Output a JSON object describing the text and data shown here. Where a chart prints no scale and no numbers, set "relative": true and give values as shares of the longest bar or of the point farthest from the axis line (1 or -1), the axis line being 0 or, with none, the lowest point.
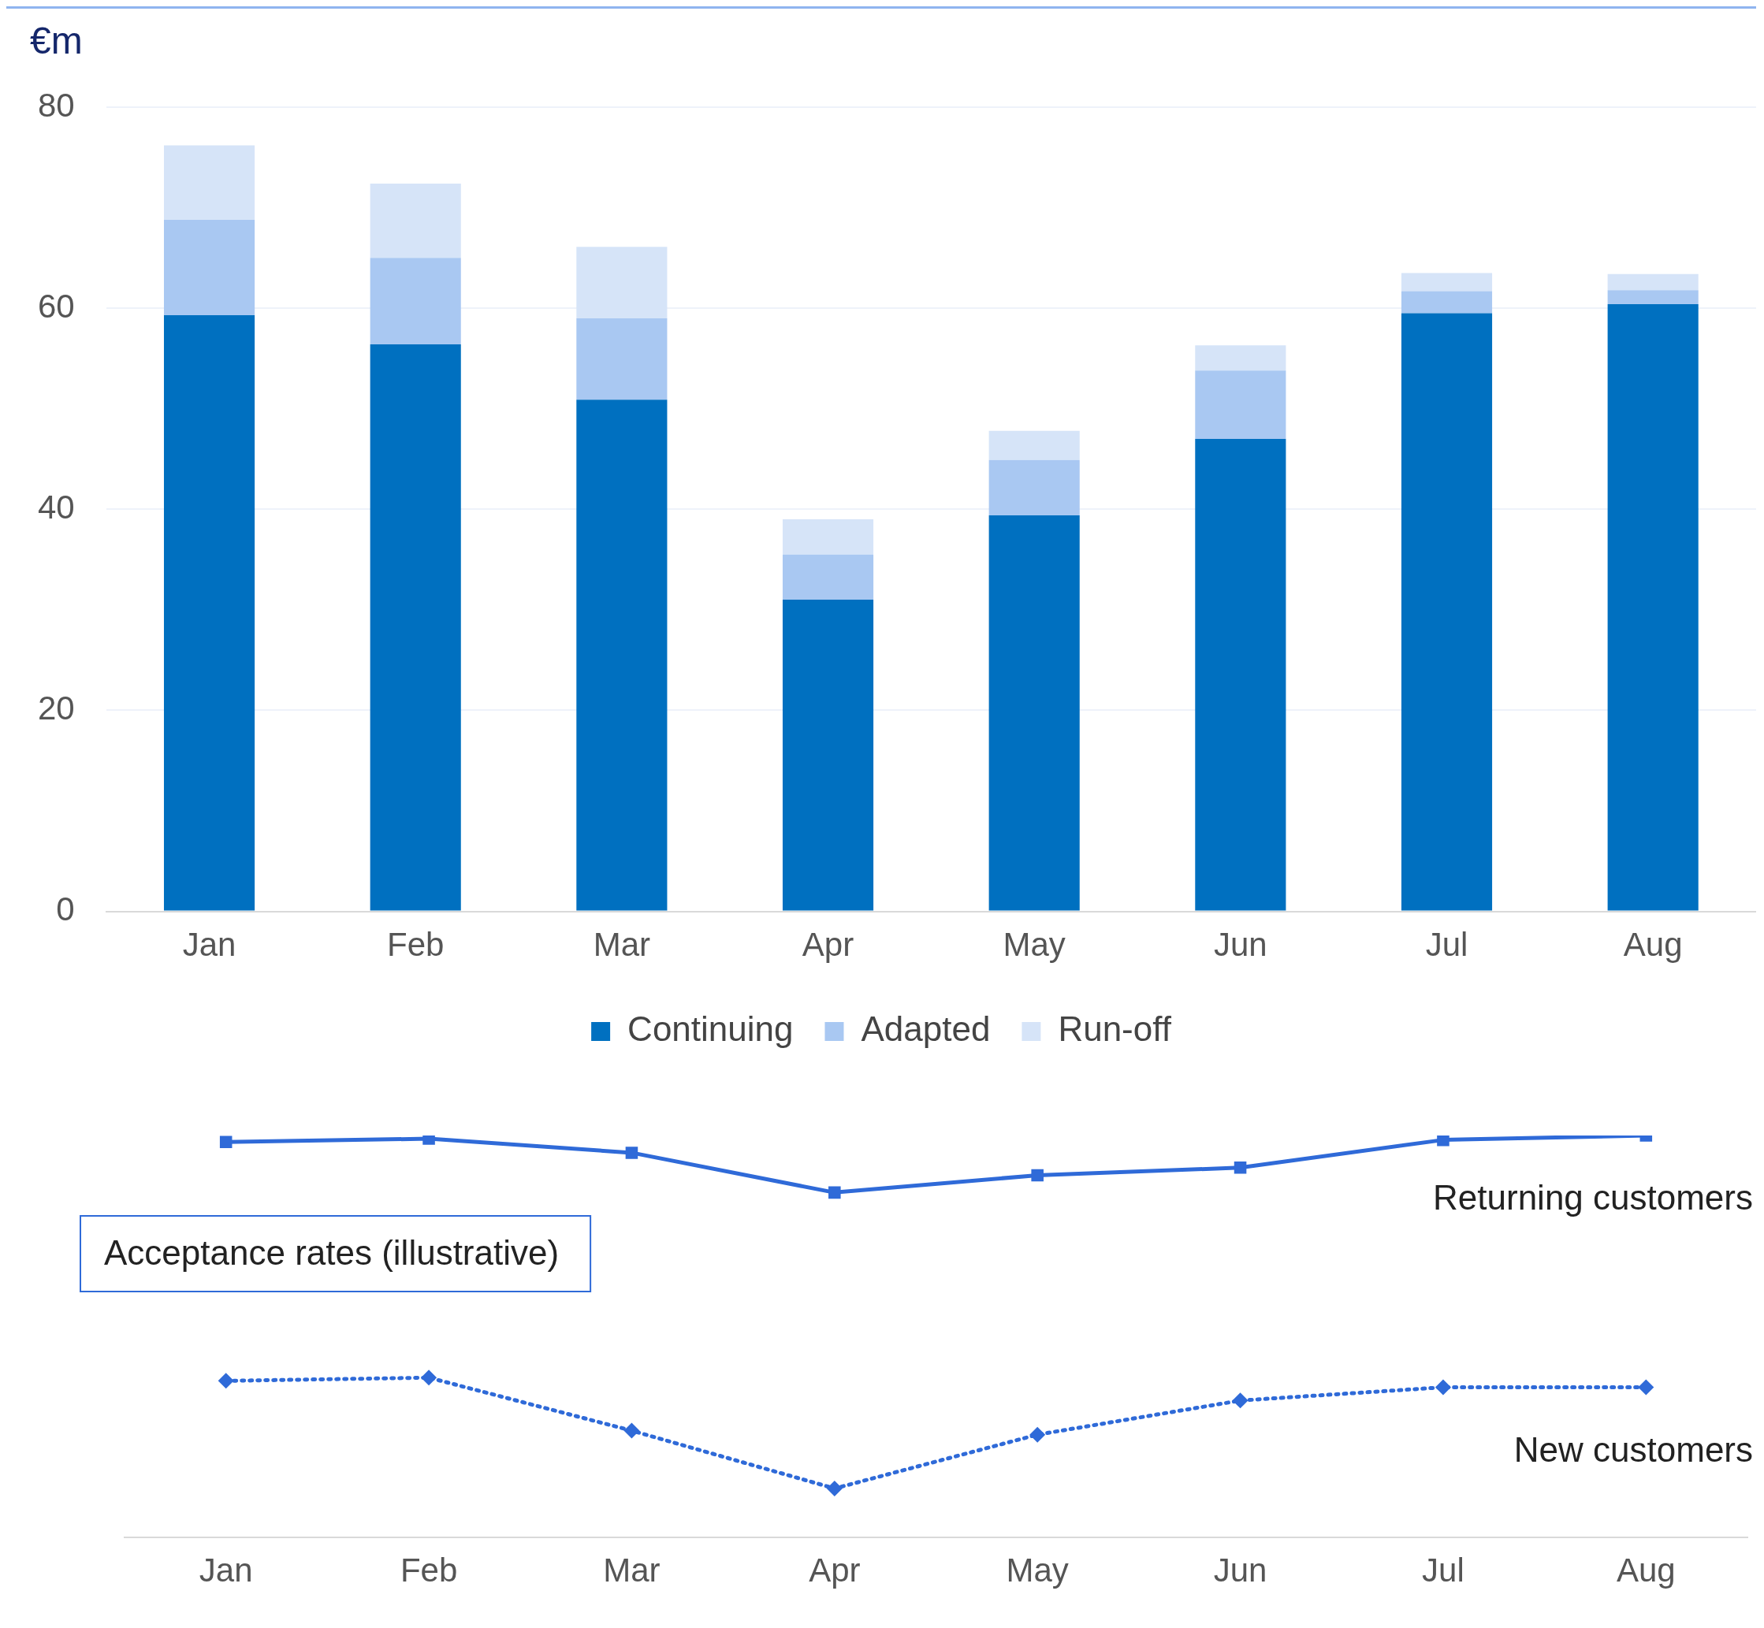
{
  "chart_data": [
    {
      "type": "bar",
      "ylabel": "€m",
      "categories": [
        "Jan",
        "Feb",
        "Mar",
        "Apr",
        "May",
        "Jun",
        "Jul",
        "Aug"
      ],
      "stacked": true,
      "ylim": [
        0,
        80
      ],
      "yticks": [
        0,
        20,
        40,
        60,
        80
      ],
      "grid": "y",
      "legend": "bottom",
      "series": [
        {
          "name": "Continuing",
          "color": "#0070c0",
          "values": [
            59.3,
            56.4,
            50.9,
            31.0,
            39.4,
            47.0,
            59.5,
            60.4
          ]
        },
        {
          "name": "Adapted",
          "color": "#a9c8f2",
          "values": [
            9.5,
            8.6,
            8.1,
            4.5,
            5.5,
            6.8,
            2.2,
            1.4
          ]
        },
        {
          "name": "Run-off",
          "color": "#d6e4f8",
          "values": [
            7.4,
            7.4,
            7.1,
            3.5,
            2.9,
            2.5,
            1.8,
            1.6
          ]
        }
      ]
    },
    {
      "type": "line",
      "title": "Acceptance rates (illustrative)",
      "categories": [
        "Jan",
        "Feb",
        "Mar",
        "Apr",
        "May",
        "Jun",
        "Jul",
        "Aug"
      ],
      "relative": true,
      "legend": false,
      "series": [
        {
          "name": "Returning customers",
          "color": "#2f6ad8",
          "marker": "square",
          "line_style": "solid",
          "values": [
            0.984,
            0.992,
            0.957,
            0.858,
            0.901,
            0.92,
            0.989,
            1
          ]
        },
        {
          "name": "New customers",
          "color": "#2f6ad8",
          "marker": "diamond",
          "line_style": "dotted",
          "values": [
            0.389,
            0.397,
            0.265,
            0.121,
            0.255,
            0.34,
            0.373,
            0.373
          ]
        }
      ]
    }
  ]
}
